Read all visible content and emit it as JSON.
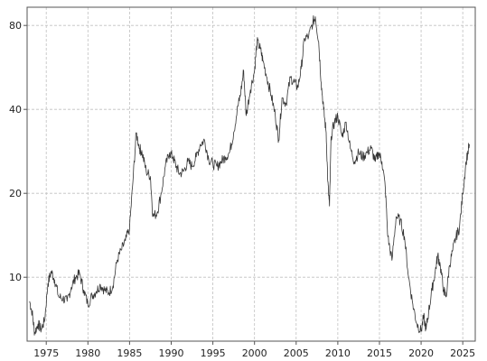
{
  "chart_data": {
    "type": "line",
    "title": "",
    "xlabel": "",
    "ylabel": "",
    "y_scale": "log",
    "xlim": [
      1972.7,
      2026.5
    ],
    "ylim": [
      5.9,
      93
    ],
    "grid": true,
    "x_ticks": [
      1975,
      1980,
      1985,
      1990,
      1995,
      2000,
      2005,
      2010,
      2015,
      2020,
      2025
    ],
    "x_tick_labels": [
      "1975",
      "1980",
      "1985",
      "1990",
      "1995",
      "2000",
      "2005",
      "2010",
      "2015",
      "2020",
      "2025"
    ],
    "y_ticks": [
      10,
      20,
      40,
      80
    ],
    "y_tick_labels": [
      "10",
      "20",
      "40",
      "80"
    ],
    "colors": {
      "line": "#333333",
      "grid": "#c0c0c0",
      "frame": "#555555"
    },
    "series": [
      {
        "x": [
          1973.0,
          1973.3,
          1973.6,
          1974.0,
          1974.4,
          1974.8,
          1975.2,
          1975.6,
          1976.0,
          1976.5,
          1977.0,
          1977.5,
          1978.0,
          1978.5,
          1979.0,
          1979.5,
          1980.0,
          1980.5,
          1981.0,
          1981.5,
          1982.0,
          1982.5,
          1983.0,
          1983.5,
          1984.0,
          1984.5,
          1985.0,
          1985.4,
          1985.8,
          1986.2,
          1986.5,
          1987.0,
          1987.5,
          1987.8,
          1988.3,
          1988.8,
          1989.3,
          1989.8,
          1990.2,
          1990.6,
          1991.0,
          1991.5,
          1992.0,
          1992.5,
          1993.0,
          1993.5,
          1994.0,
          1994.5,
          1995.0,
          1995.5,
          1996.0,
          1996.5,
          1997.0,
          1997.5,
          1998.0,
          1998.3,
          1998.7,
          1999.0,
          1999.5,
          2000.0,
          2000.3,
          2000.7,
          2001.0,
          2001.5,
          2002.0,
          2002.5,
          2002.9,
          2003.3,
          2003.8,
          2004.3,
          2004.8,
          2005.2,
          2005.6,
          2006.0,
          2006.5,
          2007.0,
          2007.3,
          2007.7,
          2008.0,
          2008.3,
          2008.6,
          2008.8,
          2009.0,
          2009.2,
          2009.6,
          2010.0,
          2010.5,
          2011.0,
          2011.5,
          2012.0,
          2012.5,
          2013.0,
          2013.5,
          2014.0,
          2014.5,
          2014.9,
          2015.3,
          2015.7,
          2016.0,
          2016.5,
          2017.0,
          2017.5,
          2018.0,
          2018.5,
          2019.0,
          2019.5,
          2020.0,
          2020.3,
          2020.6,
          2020.9,
          2021.3,
          2021.7,
          2022.0,
          2022.3,
          2022.7,
          2023.0,
          2023.4,
          2023.8,
          2024.2,
          2024.6,
          2025.0,
          2025.4,
          2025.8
        ],
        "y": [
          8.2,
          7.5,
          6.3,
          6.8,
          6.5,
          7.0,
          9.5,
          10.5,
          9.8,
          8.5,
          8.4,
          8.2,
          9.2,
          10.0,
          10.3,
          9.0,
          8.0,
          8.6,
          8.9,
          9.4,
          9.0,
          8.8,
          9.3,
          11.5,
          12.5,
          13.5,
          15.0,
          22.0,
          33.0,
          29.0,
          28.0,
          24.0,
          23.0,
          16.5,
          17.0,
          20.0,
          25.0,
          28.0,
          27.0,
          25.0,
          23.5,
          24.0,
          26.0,
          25.0,
          27.0,
          30.0,
          31.0,
          26.5,
          25.5,
          25.0,
          26.0,
          27.0,
          28.0,
          33.0,
          41.0,
          45.0,
          55.0,
          38.0,
          47.0,
          55.0,
          70.0,
          66.0,
          60.0,
          52.0,
          45.0,
          38.0,
          31.0,
          44.0,
          42.0,
          52.0,
          50.0,
          48.0,
          56.0,
          72.0,
          73.0,
          82.0,
          86.0,
          70.0,
          50.0,
          40.0,
          33.0,
          22.0,
          18.0,
          32.0,
          36.0,
          38.0,
          32.0,
          36.0,
          29.0,
          26.0,
          28.0,
          27.0,
          28.0,
          29.0,
          26.0,
          28.0,
          26.0,
          21.0,
          14.0,
          11.5,
          16.5,
          16.0,
          14.0,
          10.0,
          8.0,
          6.8,
          6.4,
          7.2,
          6.5,
          7.5,
          9.0,
          10.5,
          12.0,
          11.0,
          9.0,
          8.5,
          11.0,
          12.5,
          14.0,
          15.0,
          20.0,
          26.0,
          30.0
        ]
      }
    ]
  }
}
